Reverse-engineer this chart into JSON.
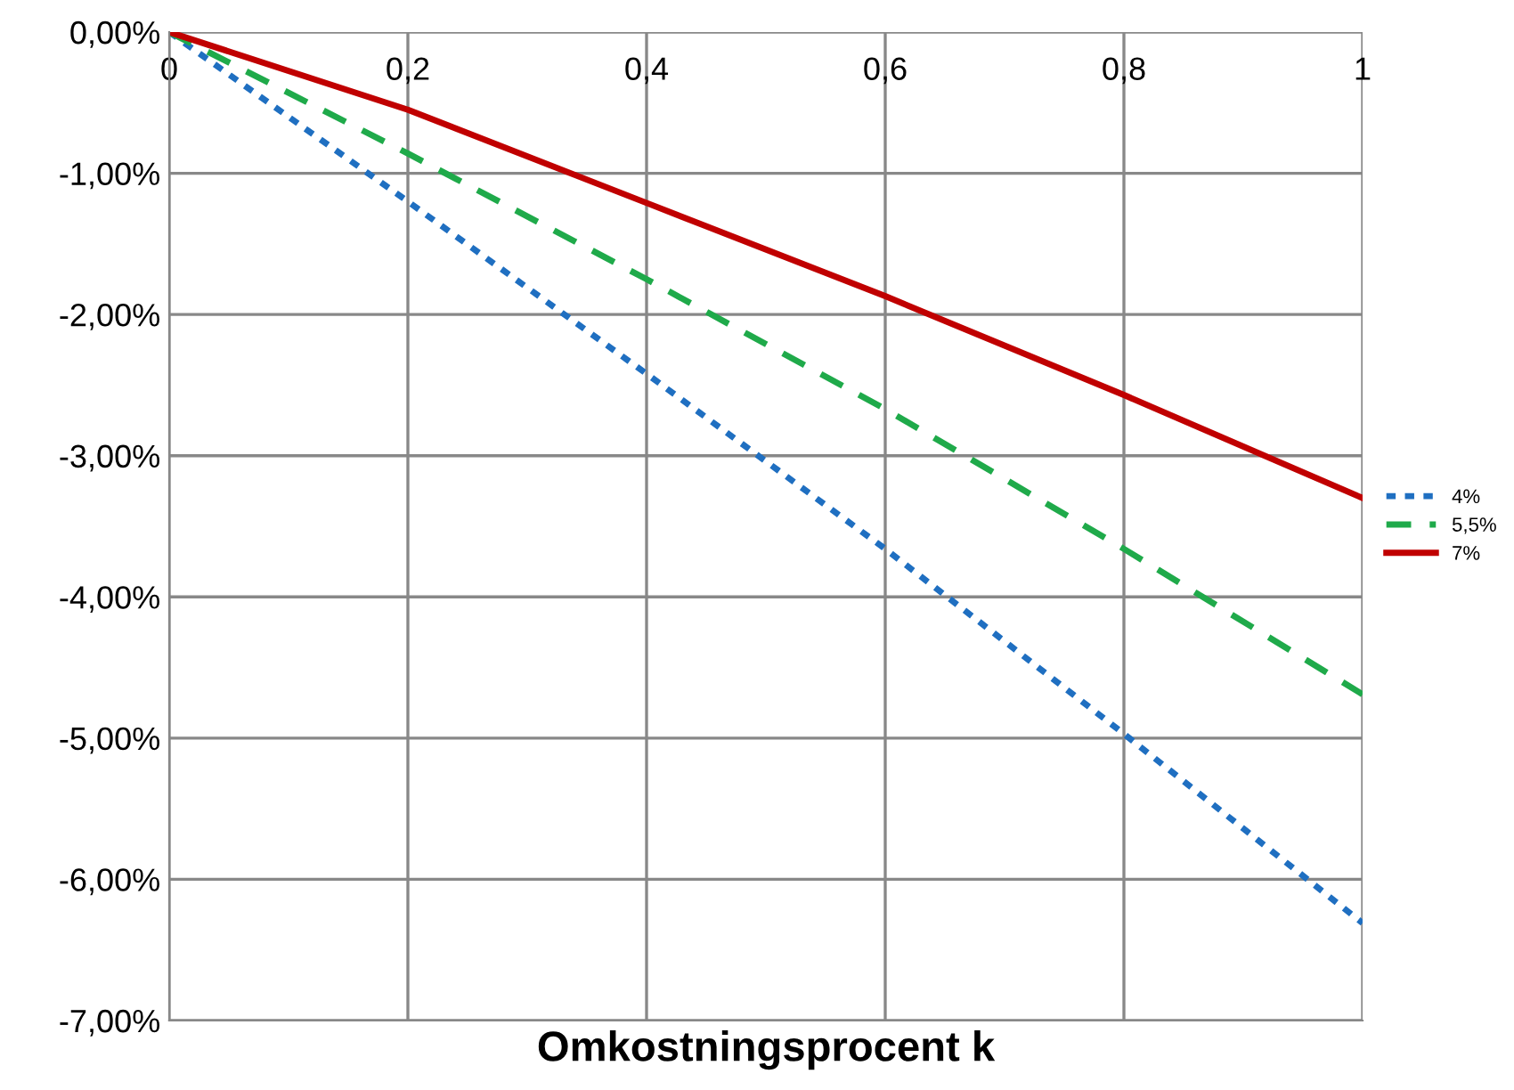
{
  "chart_data": {
    "type": "line",
    "xlabel": "Omkostningsprocent k",
    "x": [
      0,
      0.2,
      0.4,
      0.6,
      0.8,
      1
    ],
    "series": [
      {
        "name": "4%",
        "color": "#1f6fc1",
        "line_style": "dotted",
        "values": [
          0,
          -1.2,
          -2.42,
          -3.66,
          -4.97,
          -6.31
        ]
      },
      {
        "name": "5,5%",
        "color": "#1faa4a",
        "line_style": "dashed",
        "values": [
          0,
          -0.86,
          -1.75,
          -2.67,
          -3.66,
          -4.69
        ]
      },
      {
        "name": "7%",
        "color": "#c00000",
        "line_style": "solid",
        "values": [
          0,
          -0.55,
          -1.21,
          -1.87,
          -2.57,
          -3.3
        ]
      }
    ],
    "xlim": [
      0,
      1
    ],
    "xticks": [
      {
        "value": 0,
        "label": "0"
      },
      {
        "value": 0.2,
        "label": "0,2"
      },
      {
        "value": 0.4,
        "label": "0,4"
      },
      {
        "value": 0.6,
        "label": "0,6"
      },
      {
        "value": 0.8,
        "label": "0,8"
      },
      {
        "value": 1,
        "label": "1"
      }
    ],
    "ylim": [
      -7,
      0
    ],
    "yticks": [
      {
        "value": 0,
        "label": "0,00%"
      },
      {
        "value": -1,
        "label": "-1,00%"
      },
      {
        "value": -2,
        "label": "-2,00%"
      },
      {
        "value": -3,
        "label": "-3,00%"
      },
      {
        "value": -4,
        "label": "-4,00%"
      },
      {
        "value": -5,
        "label": "-5,00%"
      },
      {
        "value": -6,
        "label": "-6,00%"
      },
      {
        "value": -7,
        "label": "-7,00%"
      }
    ],
    "grid": true,
    "legend": "right",
    "marker": "none"
  }
}
